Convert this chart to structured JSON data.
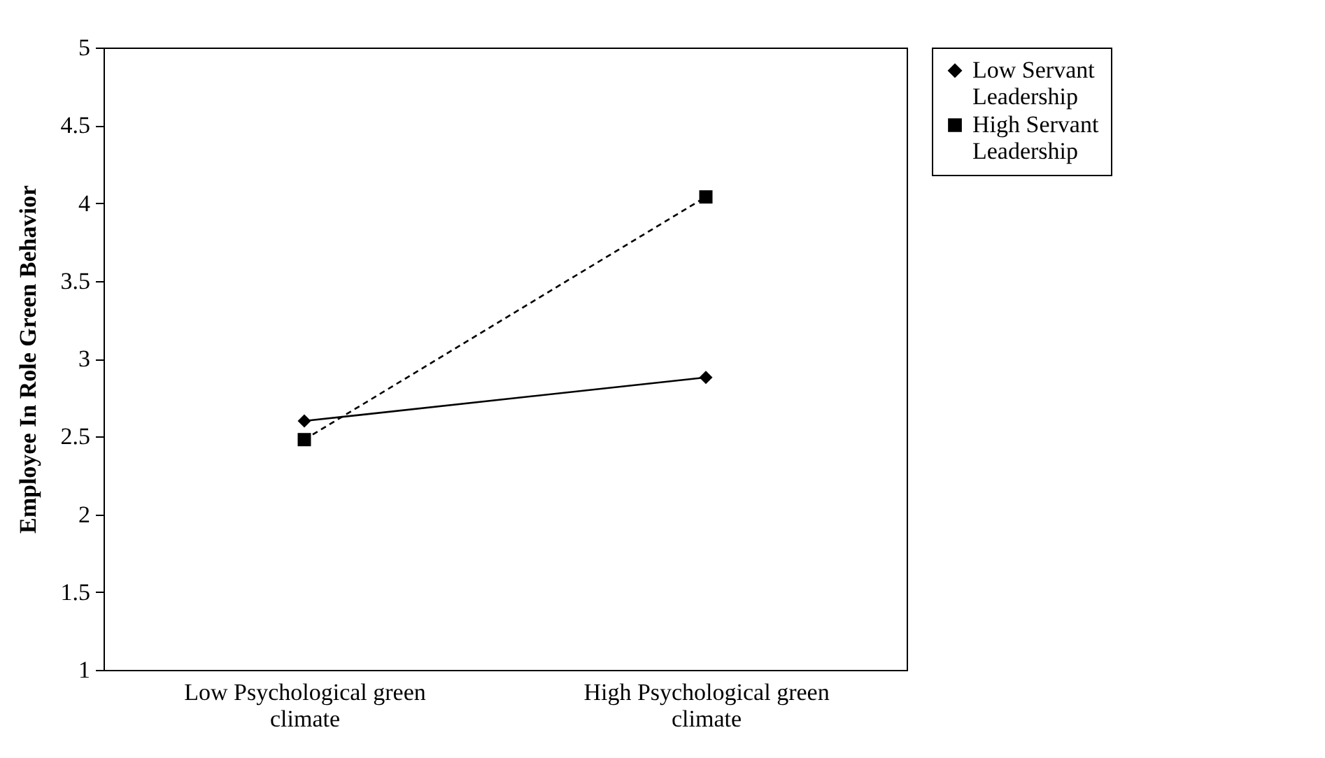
{
  "chart_data": {
    "type": "line",
    "ylabel": "Employee In Role Green Behavior",
    "categories": [
      "Low Psychological green climate",
      "High Psychological green climate"
    ],
    "series": [
      {
        "name": "Low Servant Leadership",
        "color": "#000000",
        "values": [
          2.6,
          2.88
        ],
        "marker": "diamond",
        "line_style": "solid"
      },
      {
        "name": "High Servant Leadership",
        "color": "#000000",
        "values": [
          2.48,
          4.04
        ],
        "marker": "square",
        "line_style": "dashed"
      }
    ],
    "ylim": [
      1,
      5
    ],
    "yticks": [
      1,
      1.5,
      2,
      2.5,
      3,
      3.5,
      4,
      4.5,
      5
    ],
    "grid": false,
    "legend": "right"
  }
}
